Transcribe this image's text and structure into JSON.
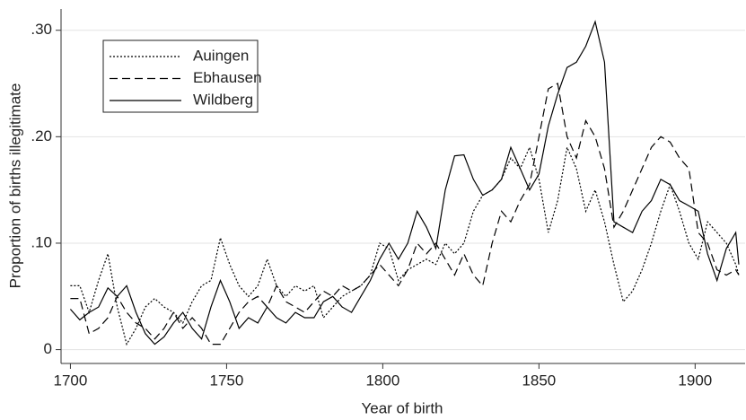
{
  "chart_data": {
    "type": "line",
    "xlabel": "Year of birth",
    "ylabel": "Proportion of births illegitimate",
    "x": [
      1700,
      1703,
      1706,
      1709,
      1712,
      1715,
      1718,
      1721,
      1724,
      1727,
      1730,
      1733,
      1736,
      1739,
      1742,
      1745,
      1748,
      1751,
      1754,
      1757,
      1760,
      1763,
      1766,
      1769,
      1772,
      1775,
      1778,
      1781,
      1784,
      1787,
      1790,
      1793,
      1796,
      1799,
      1802,
      1805,
      1808,
      1811,
      1814,
      1817,
      1820,
      1823,
      1826,
      1829,
      1832,
      1835,
      1838,
      1841,
      1844,
      1847,
      1850,
      1853,
      1856,
      1859,
      1862,
      1865,
      1868,
      1871,
      1874,
      1877,
      1880,
      1883,
      1886,
      1889,
      1892,
      1895,
      1898,
      1901,
      1904,
      1907,
      1910,
      1913,
      1914
    ],
    "series": [
      {
        "name": "Auingen",
        "color": "#000000",
        "style": "dotted",
        "values": [
          0.06,
          0.06,
          0.035,
          0.065,
          0.09,
          0.04,
          0.005,
          0.02,
          0.04,
          0.048,
          0.04,
          0.035,
          0.025,
          0.045,
          0.06,
          0.065,
          0.105,
          0.08,
          0.06,
          0.05,
          0.06,
          0.085,
          0.06,
          0.05,
          0.06,
          0.055,
          0.06,
          0.03,
          0.04,
          0.05,
          0.055,
          0.06,
          0.07,
          0.1,
          0.095,
          0.065,
          0.075,
          0.08,
          0.085,
          0.08,
          0.1,
          0.09,
          0.1,
          0.13,
          0.145,
          0.15,
          0.16,
          0.18,
          0.17,
          0.19,
          0.16,
          0.11,
          0.14,
          0.19,
          0.17,
          0.13,
          0.15,
          0.12,
          0.08,
          0.045,
          0.055,
          0.075,
          0.1,
          0.13,
          0.155,
          0.13,
          0.1,
          0.085,
          0.12,
          0.11,
          0.1,
          0.08,
          0.07
        ]
      },
      {
        "name": "Ebhausen",
        "color": "#000000",
        "style": "dashed",
        "values": [
          0.048,
          0.048,
          0.015,
          0.02,
          0.03,
          0.05,
          0.035,
          0.025,
          0.02,
          0.01,
          0.02,
          0.035,
          0.02,
          0.03,
          0.02,
          0.005,
          0.005,
          0.02,
          0.035,
          0.045,
          0.05,
          0.04,
          0.06,
          0.045,
          0.04,
          0.035,
          0.045,
          0.055,
          0.05,
          0.06,
          0.055,
          0.06,
          0.07,
          0.08,
          0.07,
          0.06,
          0.075,
          0.1,
          0.09,
          0.1,
          0.085,
          0.07,
          0.09,
          0.07,
          0.06,
          0.1,
          0.13,
          0.12,
          0.14,
          0.155,
          0.2,
          0.245,
          0.25,
          0.2,
          0.18,
          0.215,
          0.2,
          0.17,
          0.115,
          0.13,
          0.15,
          0.17,
          0.19,
          0.2,
          0.195,
          0.18,
          0.17,
          0.11,
          0.1,
          0.075,
          0.07,
          0.075,
          0.07
        ]
      },
      {
        "name": "Wildberg",
        "color": "#000000",
        "style": "solid",
        "values": [
          0.038,
          0.028,
          0.035,
          0.04,
          0.058,
          0.05,
          0.06,
          0.035,
          0.015,
          0.005,
          0.012,
          0.025,
          0.035,
          0.02,
          0.01,
          0.04,
          0.065,
          0.045,
          0.02,
          0.03,
          0.025,
          0.04,
          0.03,
          0.025,
          0.035,
          0.03,
          0.03,
          0.045,
          0.05,
          0.04,
          0.035,
          0.05,
          0.065,
          0.085,
          0.1,
          0.085,
          0.1,
          0.13,
          0.115,
          0.095,
          0.15,
          0.182,
          0.183,
          0.16,
          0.145,
          0.15,
          0.16,
          0.19,
          0.17,
          0.15,
          0.165,
          0.21,
          0.24,
          0.265,
          0.27,
          0.285,
          0.308,
          0.27,
          0.12,
          0.115,
          0.11,
          0.13,
          0.14,
          0.16,
          0.155,
          0.14,
          0.135,
          0.13,
          0.09,
          0.065,
          0.095,
          0.11,
          0.08
        ]
      }
    ],
    "xlim": [
      1697,
      1916
    ],
    "xticks": [
      1700,
      1750,
      1800,
      1850,
      1900
    ],
    "ylim": [
      -0.013,
      0.32
    ],
    "yticks": [
      0,
      {
        "value": 0.1,
        "label": ".10"
      },
      {
        "value": 0.2,
        "label": ".20"
      },
      {
        "value": 0.3,
        "label": ".30"
      }
    ],
    "grid": true,
    "legend": "upper left"
  }
}
